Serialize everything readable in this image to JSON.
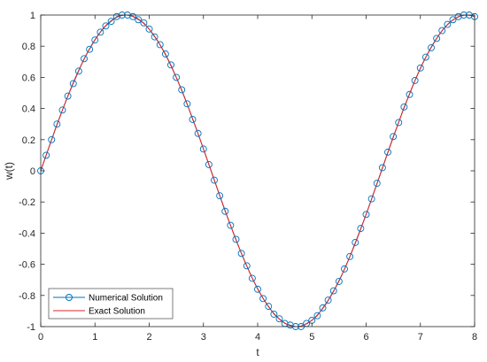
{
  "chart_data": {
    "type": "line",
    "title": "",
    "xlabel": "t",
    "ylabel": "w(t)",
    "xlim": [
      0,
      8
    ],
    "ylim": [
      -1,
      1
    ],
    "xticks": [
      0,
      1,
      2,
      3,
      4,
      5,
      6,
      7,
      8
    ],
    "yticks": [
      -1,
      -0.8,
      -0.6,
      -0.4,
      -0.2,
      0,
      0.2,
      0.4,
      0.6,
      0.8,
      1
    ],
    "grid": false,
    "legend_position": "bottom-left",
    "series": [
      {
        "name": "Numerical Solution",
        "style": "markers-circle",
        "color": "#0072BD",
        "x": [
          0,
          0.1,
          0.2,
          0.3,
          0.4,
          0.5,
          0.6,
          0.7,
          0.8,
          0.9,
          1.0,
          1.1,
          1.2,
          1.3,
          1.4,
          1.5,
          1.6,
          1.7,
          1.8,
          1.9,
          2.0,
          2.1,
          2.2,
          2.3,
          2.4,
          2.5,
          2.6,
          2.7,
          2.8,
          2.9,
          3.0,
          3.1,
          3.2,
          3.3,
          3.4,
          3.5,
          3.6,
          3.7,
          3.8,
          3.9,
          4.0,
          4.1,
          4.2,
          4.3,
          4.4,
          4.5,
          4.6,
          4.7,
          4.8,
          4.9,
          5.0,
          5.1,
          5.2,
          5.3,
          5.4,
          5.5,
          5.6,
          5.7,
          5.8,
          5.9,
          6.0,
          6.1,
          6.2,
          6.3,
          6.4,
          6.5,
          6.6,
          6.7,
          6.8,
          6.9,
          7.0,
          7.1,
          7.2,
          7.3,
          7.4,
          7.5,
          7.6,
          7.7,
          7.8,
          7.9,
          8.0
        ],
        "y": [
          0,
          0.1,
          0.2,
          0.3,
          0.39,
          0.48,
          0.56,
          0.64,
          0.72,
          0.78,
          0.84,
          0.89,
          0.93,
          0.96,
          0.99,
          1.0,
          1.0,
          0.99,
          0.97,
          0.95,
          0.91,
          0.86,
          0.81,
          0.75,
          0.68,
          0.6,
          0.52,
          0.43,
          0.33,
          0.24,
          0.14,
          0.04,
          -0.06,
          -0.16,
          -0.26,
          -0.35,
          -0.44,
          -0.53,
          -0.61,
          -0.69,
          -0.76,
          -0.82,
          -0.87,
          -0.92,
          -0.95,
          -0.98,
          -0.99,
          -1.0,
          -1.0,
          -0.98,
          -0.96,
          -0.93,
          -0.88,
          -0.83,
          -0.77,
          -0.71,
          -0.63,
          -0.55,
          -0.46,
          -0.37,
          -0.28,
          -0.18,
          -0.08,
          0.02,
          0.12,
          0.22,
          0.31,
          0.41,
          0.49,
          0.58,
          0.66,
          0.73,
          0.79,
          0.85,
          0.9,
          0.94,
          0.97,
          0.99,
          1.0,
          1.0,
          0.99
        ]
      },
      {
        "name": "Exact Solution",
        "style": "line",
        "color": "#D62728",
        "function": "sin(t)",
        "x_range": [
          0,
          8
        ]
      }
    ]
  }
}
